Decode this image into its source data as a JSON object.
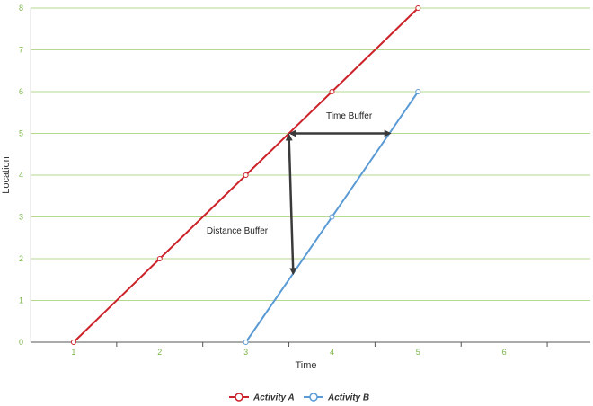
{
  "chart_data": {
    "type": "line",
    "xlabel": "Time",
    "ylabel": "Location",
    "xlim": [
      0.5,
      7
    ],
    "ylim": [
      0,
      8
    ],
    "x_ticks": [
      1,
      2,
      3,
      4,
      5,
      6
    ],
    "y_ticks": [
      0,
      1,
      2,
      3,
      4,
      5,
      6,
      7,
      8
    ],
    "grid": "horizontal",
    "legend_position": "bottom-center",
    "series": [
      {
        "name": "Activity A",
        "color": "#cc2229",
        "x": [
          1,
          2,
          3,
          4,
          5
        ],
        "y": [
          0,
          2,
          4,
          6,
          8
        ]
      },
      {
        "name": "Activity B",
        "color": "#5b9bd5",
        "x": [
          3,
          4,
          5
        ],
        "y": [
          0,
          3,
          6
        ]
      }
    ],
    "annotations": [
      {
        "text": "Time Buffer",
        "from": [
          3.5,
          5
        ],
        "to": [
          4.67,
          5
        ]
      },
      {
        "text": "Distance Buffer",
        "from": [
          3.5,
          5
        ],
        "to": [
          3.55,
          1.65
        ]
      }
    ],
    "colors": {
      "grid": "#b5d98f",
      "tick_x": "#7ab648",
      "tick_y": "#7ab648",
      "axis": "#555555",
      "arrow": "#3a3a3a"
    }
  }
}
